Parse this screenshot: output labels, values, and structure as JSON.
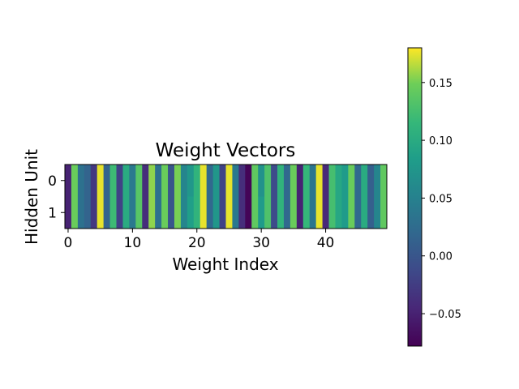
{
  "chart_data": {
    "type": "heatmap",
    "title": "Weight Vectors",
    "xlabel": "Weight Index",
    "ylabel": "Hidden Unit",
    "x_ticks": [
      0,
      10,
      20,
      30,
      40
    ],
    "y_ticks": [
      0,
      1
    ],
    "x_tick_labels": [
      "0",
      "10",
      "20",
      "30",
      "40"
    ],
    "y_tick_labels": [
      "0",
      "1"
    ],
    "colormap": "viridis",
    "colorbar": {
      "vmin": -0.078,
      "vmax": 0.18,
      "ticks": [
        -0.05,
        0.0,
        0.05,
        0.1,
        0.15
      ],
      "tick_labels": [
        "−0.05",
        "0.00",
        "0.05",
        "0.10",
        "0.15"
      ]
    },
    "values": [
      [
        -0.05,
        0.145,
        0.03,
        0.015,
        -0.03,
        0.175,
        0.015,
        0.12,
        -0.02,
        0.1,
        0.04,
        0.135,
        -0.04,
        0.155,
        0.03,
        0.145,
        0.0,
        0.15,
        0.055,
        0.075,
        0.11,
        0.175,
        0.02,
        0.075,
        -0.02,
        0.175,
        0.04,
        -0.04,
        -0.075,
        0.14,
        0.07,
        0.13,
        -0.01,
        0.11,
        0.02,
        0.145,
        -0.05,
        0.115,
        0.035,
        0.175,
        -0.045,
        0.125,
        0.095,
        0.08,
        0.145,
        0.02,
        0.1,
        0.01,
        0.055,
        0.14
      ],
      [
        -0.05,
        0.145,
        0.03,
        0.015,
        -0.03,
        0.175,
        0.015,
        0.12,
        -0.02,
        0.1,
        0.04,
        0.135,
        -0.04,
        0.155,
        0.03,
        0.145,
        0.0,
        0.15,
        0.055,
        0.085,
        0.11,
        0.175,
        0.02,
        0.075,
        -0.02,
        0.175,
        0.04,
        -0.04,
        -0.075,
        0.14,
        0.08,
        0.13,
        -0.01,
        0.11,
        0.02,
        0.145,
        -0.05,
        0.115,
        0.035,
        0.175,
        -0.045,
        0.125,
        0.095,
        0.08,
        0.145,
        0.02,
        0.1,
        0.01,
        0.055,
        0.14
      ]
    ]
  }
}
